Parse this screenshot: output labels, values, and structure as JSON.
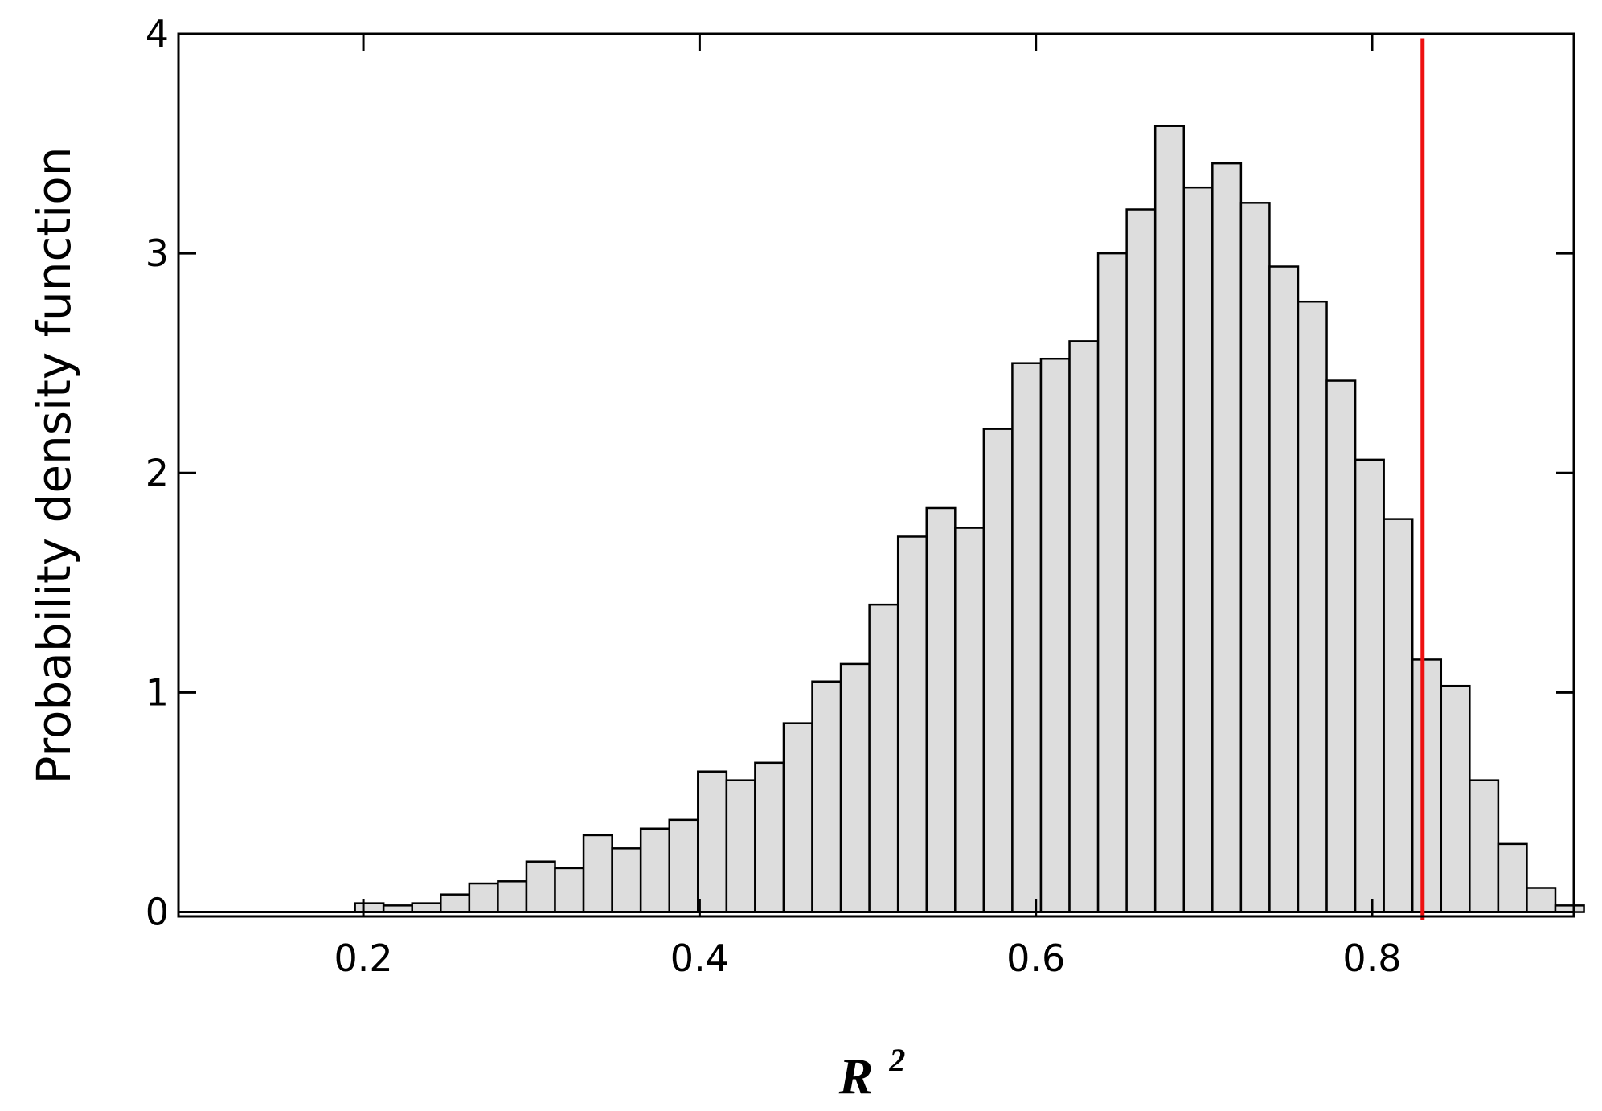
{
  "chart_data": {
    "type": "bar",
    "xlabel": "R",
    "xlabel_superscript": "2",
    "ylabel": "Probability density function",
    "xlim": [
      0.09,
      0.92
    ],
    "ylim": [
      -0.02,
      4.0
    ],
    "x_ticks": [
      0.2,
      0.4,
      0.6,
      0.8
    ],
    "x_tick_labels": [
      "0.2",
      "0.4",
      "0.6",
      "0.8"
    ],
    "y_ticks": [
      0,
      1,
      2,
      3,
      4
    ],
    "y_tick_labels": [
      "0",
      "1",
      "2",
      "3",
      "4"
    ],
    "bin_start": 0.195,
    "bin_width": 0.017,
    "values": [
      0.04,
      0.03,
      0.04,
      0.08,
      0.13,
      0.14,
      0.23,
      0.2,
      0.35,
      0.29,
      0.38,
      0.42,
      0.64,
      0.6,
      0.68,
      0.86,
      1.05,
      1.13,
      1.4,
      1.71,
      1.84,
      1.75,
      2.2,
      2.5,
      2.52,
      2.6,
      3.0,
      3.2,
      3.58,
      3.3,
      3.41,
      3.23,
      2.94,
      2.78,
      2.42,
      2.06,
      1.79,
      1.15,
      1.03,
      0.6,
      0.31,
      0.11,
      0.03
    ],
    "bar_color": "#dddddd",
    "edge_color": "#000000",
    "reference_line_x": 0.83,
    "reference_line_color": "#ee1111",
    "grid": false
  }
}
